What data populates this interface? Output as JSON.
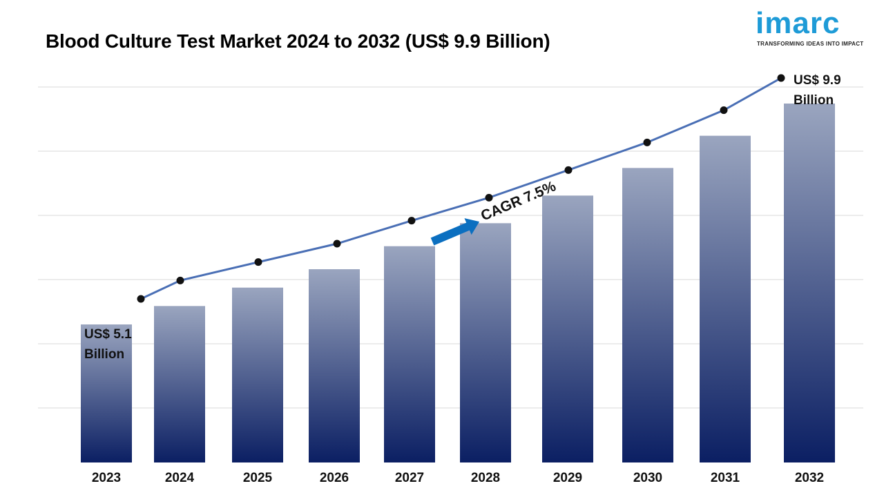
{
  "header": {
    "title": "Blood Culture Test Market 2024 to 2032 (US$ 9.9 Billion)"
  },
  "logo": {
    "word": "imarc",
    "tagline": "TRANSFORMING IDEAS INTO IMPACT",
    "color": "#1e9bd7"
  },
  "chart_data": {
    "type": "bar",
    "title": "Blood Culture Test Market 2024 to 2032 (US$ 9.9 Billion)",
    "xlabel": "",
    "ylabel": "",
    "categories": [
      "2023",
      "2024",
      "2025",
      "2026",
      "2027",
      "2028",
      "2029",
      "2030",
      "2031",
      "2032"
    ],
    "values": [
      5.1,
      5.5,
      5.9,
      6.3,
      6.8,
      7.3,
      7.9,
      8.5,
      9.2,
      9.9
    ],
    "ylim": [
      2.1,
      10.2
    ],
    "grid": true,
    "overlay_line": true,
    "bar_gradient": [
      "#9aa5bf",
      "#0b1f63"
    ],
    "line_color": "#4a6fb5",
    "annotations": {
      "start": {
        "line1": "US$ 5.1",
        "line2": "Billion"
      },
      "end": {
        "line1": "US$ 9.9",
        "line2": "Billion"
      },
      "cagr": "CAGR 7.5%",
      "arrow_color": "#0b6fc0"
    }
  }
}
